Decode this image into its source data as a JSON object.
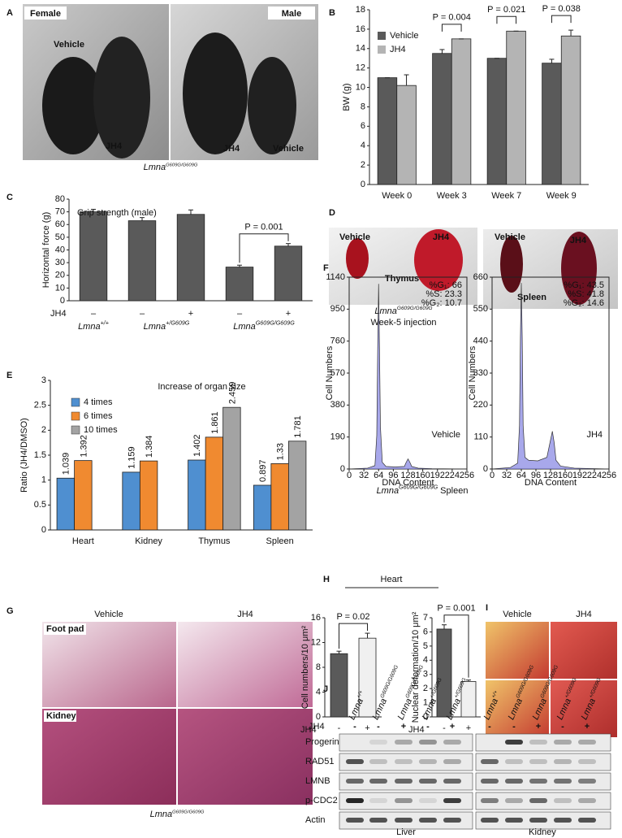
{
  "panel_letters": [
    "A",
    "B",
    "C",
    "D",
    "E",
    "F",
    "G",
    "H",
    "I",
    "J"
  ],
  "photo_a": {
    "labels": [
      "Female",
      "Male",
      "Vehicle",
      "JH4",
      "JH4",
      "Vehicle"
    ],
    "caption": {
      "base": "Lmna",
      "sup": "G609G/G609G"
    }
  },
  "photo_d": {
    "labels": [
      "Vehicle",
      "JH4",
      "Thymus",
      "Vehicle",
      "JH4",
      "Spleen"
    ],
    "caption": {
      "base": "Lmna",
      "sup": "G609G/G609G"
    },
    "subcaption": "Week-5 injection"
  },
  "panel_c": {
    "row_label": "JH4",
    "groups": [
      {
        "base": "Lmna",
        "sup": "+/+"
      },
      {
        "base": "Lmna",
        "sup": "+/G609G"
      },
      {
        "base": "Lmna",
        "sup": "G609G/G609G"
      }
    ]
  },
  "panel_f": {
    "caption": {
      "base": "Lmna",
      "sup": "G609G/G609G",
      "after": " Spleen"
    }
  },
  "panel_g": {
    "columns": [
      "Vehicle",
      "JH4"
    ],
    "rows": [
      "Foot pad",
      "Kidney"
    ],
    "caption": {
      "base": "Lmna",
      "sup": "G609G/G609G"
    }
  },
  "panel_h": {
    "title": "Heart",
    "row_label": "JH4"
  },
  "panel_i": {
    "columns": [
      "Vehicle",
      "JH4"
    ]
  },
  "blot": {
    "treatment_label": "JH4",
    "lanes": [
      {
        "base": "Lmna",
        "sup": "+/+"
      },
      {
        "base": "Lmna",
        "sup": "G609G/G609G"
      },
      {
        "base": "Lmna",
        "sup": "G609G/G609G"
      },
      {
        "base": "Lmna",
        "sup": "+/G609G"
      },
      {
        "base": "Lmna",
        "sup": "+/G609G"
      },
      {
        "base": "Lmna",
        "sup": "+/+"
      },
      {
        "base": "Lmna",
        "sup": "G609G/G609G"
      },
      {
        "base": "Lmna",
        "sup": "G609G/G609G"
      },
      {
        "base": "Lmna",
        "sup": "+/G609G"
      },
      {
        "base": "Lmna",
        "sup": "+/G609G"
      }
    ],
    "treatment": [
      "-",
      "-",
      "+",
      "-",
      "+",
      "-",
      "-",
      "+",
      "-",
      "+"
    ],
    "rows": [
      "Progerin",
      "RAD51",
      "LMNB",
      "p-CDC2",
      "Actin"
    ],
    "tissues": [
      "Liver",
      "Kidney"
    ]
  },
  "chart_data": [
    {
      "type": "bar",
      "ylabel": "BW (g)",
      "categories": [
        "Week 0",
        "Week 3",
        "Week 7",
        "Week 9"
      ],
      "series": [
        {
          "name": "Vehicle",
          "color": "#5a5a5a",
          "values": [
            11,
            13.5,
            13,
            12.5
          ],
          "errors": [
            0,
            0.4,
            0,
            0.4
          ]
        },
        {
          "name": "JH4",
          "color": "#b4b4b4",
          "values": [
            10.2,
            15,
            15.8,
            15.3
          ],
          "errors": [
            1.1,
            0,
            0,
            0.6
          ]
        }
      ],
      "annotations": [
        "P = 0.004",
        "P = 0.021",
        "P = 0.038"
      ],
      "ylim": [
        0,
        18
      ],
      "yticks": [
        0,
        2,
        4,
        6,
        8,
        10,
        12,
        14,
        16,
        18
      ],
      "legend": "upper left"
    },
    {
      "type": "bar",
      "title": "Grip strength (male)",
      "ylabel": "Horizontal force (g)",
      "categories": [
        "–",
        "–",
        "+",
        "–",
        "+"
      ],
      "values": [
        70,
        63,
        68,
        26.5,
        43
      ],
      "errors": [
        2,
        2.5,
        3.5,
        1.5,
        2
      ],
      "color": "#5a5a5a",
      "annotation": "P = 0.001",
      "ylim": [
        0,
        80
      ],
      "yticks": [
        0,
        10,
        20,
        30,
        40,
        50,
        60,
        70,
        80
      ]
    },
    {
      "type": "bar",
      "title": "Increase of organ size",
      "ylabel": "Ratio (JH4/DMSO)",
      "categories": [
        "Heart",
        "Kidney",
        "Thymus",
        "Spleen"
      ],
      "series": [
        {
          "name": "4 times",
          "color": "#4f8fd0",
          "values": [
            1.039,
            1.159,
            1.402,
            0.897
          ]
        },
        {
          "name": "6 times",
          "color": "#f08a30",
          "values": [
            1.392,
            1.384,
            1.861,
            1.33
          ]
        },
        {
          "name": "10 times",
          "color": "#a3a3a3",
          "values": [
            null,
            null,
            2.459,
            1.781
          ]
        }
      ],
      "data_labels": true,
      "ylim": [
        0,
        3
      ],
      "yticks": [
        0,
        0.5,
        1,
        1.5,
        2,
        2.5,
        3
      ],
      "legend": "upper left"
    },
    {
      "type": "area",
      "xlabel": "DNA Content",
      "ylabel": "Cell Numbers",
      "label": "Vehicle",
      "color": "#7a7ae0",
      "annotations": [
        "%G₁: 66",
        "%S: 23.3",
        "%G₂: 10.7"
      ],
      "x": [
        0,
        40,
        56,
        60,
        62,
        64,
        66,
        68,
        72,
        80,
        100,
        120,
        124,
        128,
        132,
        136,
        150,
        180,
        256
      ],
      "values": [
        0,
        5,
        20,
        200,
        700,
        1100,
        700,
        250,
        40,
        15,
        12,
        15,
        40,
        60,
        40,
        15,
        5,
        2,
        0
      ],
      "xlim": [
        0,
        256
      ],
      "xticks": [
        0,
        32,
        64,
        96,
        128,
        160,
        192,
        224,
        256
      ],
      "ylim": [
        0,
        1140
      ],
      "yticks": [
        0,
        190,
        380,
        570,
        760,
        950,
        1140
      ]
    },
    {
      "type": "area",
      "xlabel": "DNA Content",
      "ylabel": "Cell Numbers",
      "label": "JH4",
      "color": "#7a7ae0",
      "annotations": [
        "%G₁: 43.5",
        "%S: 41.8",
        "%G₂: 14.6"
      ],
      "x": [
        0,
        40,
        56,
        60,
        62,
        64,
        66,
        68,
        72,
        80,
        100,
        120,
        128,
        132,
        136,
        140,
        150,
        180,
        256
      ],
      "values": [
        0,
        5,
        20,
        150,
        450,
        640,
        450,
        150,
        40,
        30,
        28,
        40,
        100,
        130,
        90,
        30,
        10,
        3,
        0
      ],
      "xlim": [
        0,
        256
      ],
      "xticks": [
        0,
        32,
        64,
        96,
        128,
        160,
        192,
        224,
        256
      ],
      "ylim": [
        0,
        660
      ],
      "yticks": [
        0,
        110,
        220,
        330,
        440,
        550,
        660
      ]
    },
    {
      "type": "bar",
      "ylabel": "Cell numbers/10 μm²",
      "categories": [
        "-",
        "+"
      ],
      "values": [
        10.2,
        12.7
      ],
      "errors": [
        0.4,
        0.8
      ],
      "colors": [
        "#5a5a5a",
        "#f0f0f0"
      ],
      "annotation": "P = 0.02",
      "ylim": [
        0,
        16
      ],
      "yticks": [
        0,
        4,
        8,
        12,
        16
      ]
    },
    {
      "type": "bar",
      "ylabel": "Nuclear deformation/10 μm²",
      "categories": [
        "-",
        "+"
      ],
      "values": [
        6.2,
        2.5
      ],
      "errors": [
        0.3,
        0.1
      ],
      "colors": [
        "#5a5a5a",
        "#f0f0f0"
      ],
      "annotation": "P = 0.001",
      "ylim": [
        0,
        7
      ],
      "yticks": [
        0,
        1,
        2,
        3,
        4,
        5,
        6,
        7
      ]
    }
  ]
}
